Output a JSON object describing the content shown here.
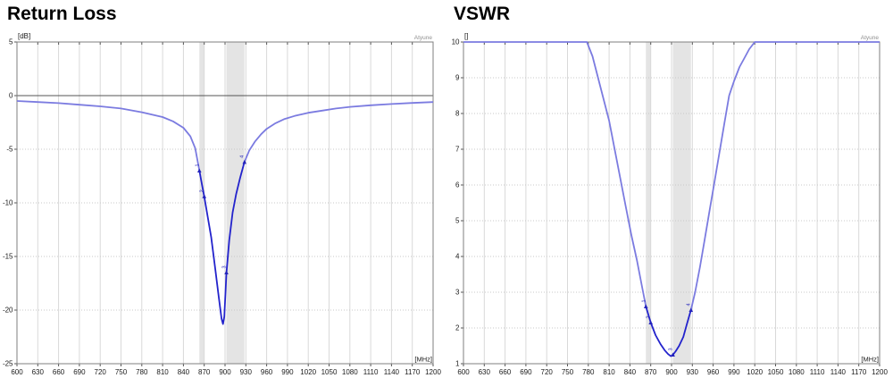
{
  "colors": {
    "curve": "#7b7be0",
    "curve_highlight": "#2323cc",
    "band_fill": "#e4e4e4",
    "grid_vertical": "#d9d9d9",
    "grid_horizontal": "#c9c9c9",
    "frame": "#7f7f7f",
    "zero_line": "#555555",
    "tick": "#555555",
    "tick_text": "#1a1a1a",
    "marker": "#2323bb",
    "watermark": "#909090",
    "title_text": "#000000"
  },
  "chart_data": [
    {
      "type": "line",
      "title": "Return Loss",
      "watermark": "Atyune",
      "y_unit_label": "[dB]",
      "x_unit_label": "[MHz]",
      "x_range": [
        600,
        1200
      ],
      "x_ticks": [
        600,
        630,
        660,
        690,
        720,
        750,
        780,
        810,
        840,
        870,
        900,
        930,
        960,
        990,
        1020,
        1050,
        1080,
        1110,
        1140,
        1170,
        1200
      ],
      "y_range": [
        -25,
        5
      ],
      "y_ticks": [
        5,
        0,
        -5,
        -10,
        -15,
        -20,
        -25
      ],
      "zero_line": 0,
      "bands": [
        [
          863,
          870
        ],
        [
          902,
          928
        ]
      ],
      "highlight_range": [
        863,
        928
      ],
      "markers": [
        {
          "label": "1",
          "x": 863,
          "y": -7.0
        },
        {
          "label": "2",
          "x": 870,
          "y": -9.4
        },
        {
          "label": "3",
          "x": 902,
          "y": -16.5
        },
        {
          "label": "4",
          "x": 928,
          "y": -6.2
        }
      ],
      "points": [
        [
          600,
          -0.5
        ],
        [
          630,
          -0.6
        ],
        [
          660,
          -0.7
        ],
        [
          690,
          -0.85
        ],
        [
          720,
          -1.0
        ],
        [
          750,
          -1.2
        ],
        [
          780,
          -1.55
        ],
        [
          810,
          -2.0
        ],
        [
          825,
          -2.4
        ],
        [
          840,
          -3.0
        ],
        [
          850,
          -3.8
        ],
        [
          857,
          -4.9
        ],
        [
          863,
          -7.0
        ],
        [
          867,
          -8.4
        ],
        [
          870,
          -9.4
        ],
        [
          875,
          -11.3
        ],
        [
          880,
          -13.2
        ],
        [
          886,
          -16.2
        ],
        [
          891,
          -18.8
        ],
        [
          895,
          -20.8
        ],
        [
          897,
          -21.3
        ],
        [
          899,
          -20.6
        ],
        [
          902,
          -16.5
        ],
        [
          906,
          -13.5
        ],
        [
          911,
          -10.9
        ],
        [
          916,
          -9.2
        ],
        [
          922,
          -7.6
        ],
        [
          928,
          -6.2
        ],
        [
          935,
          -5.1
        ],
        [
          943,
          -4.3
        ],
        [
          952,
          -3.6
        ],
        [
          960,
          -3.1
        ],
        [
          972,
          -2.6
        ],
        [
          985,
          -2.2
        ],
        [
          1000,
          -1.9
        ],
        [
          1020,
          -1.6
        ],
        [
          1040,
          -1.4
        ],
        [
          1060,
          -1.2
        ],
        [
          1080,
          -1.05
        ],
        [
          1110,
          -0.9
        ],
        [
          1140,
          -0.78
        ],
        [
          1170,
          -0.68
        ],
        [
          1200,
          -0.6
        ]
      ]
    },
    {
      "type": "line",
      "title": "VSWR",
      "watermark": "Atyune",
      "y_unit_label": "[]",
      "x_unit_label": "[MHz]",
      "x_range": [
        600,
        1200
      ],
      "x_ticks": [
        600,
        630,
        660,
        690,
        720,
        750,
        780,
        810,
        840,
        870,
        900,
        930,
        960,
        990,
        1020,
        1050,
        1080,
        1110,
        1140,
        1170,
        1200
      ],
      "y_range": [
        1,
        10
      ],
      "y_ticks": [
        10,
        9,
        8,
        7,
        6,
        5,
        4,
        3,
        2,
        1
      ],
      "zero_line": null,
      "bands": [
        [
          863,
          870
        ],
        [
          902,
          928
        ]
      ],
      "highlight_range": [
        863,
        928
      ],
      "markers": [
        {
          "label": "1",
          "x": 863,
          "y": 2.6
        },
        {
          "label": "2",
          "x": 870,
          "y": 2.15
        },
        {
          "label": "3",
          "x": 902,
          "y": 1.25
        },
        {
          "label": "4",
          "x": 928,
          "y": 2.5
        }
      ],
      "points": [
        [
          600,
          10
        ],
        [
          700,
          10
        ],
        [
          778,
          10
        ],
        [
          786,
          9.6
        ],
        [
          794,
          9.0
        ],
        [
          802,
          8.4
        ],
        [
          810,
          7.8
        ],
        [
          818,
          7.0
        ],
        [
          826,
          6.2
        ],
        [
          834,
          5.4
        ],
        [
          842,
          4.6
        ],
        [
          850,
          3.9
        ],
        [
          857,
          3.2
        ],
        [
          863,
          2.6
        ],
        [
          870,
          2.15
        ],
        [
          877,
          1.8
        ],
        [
          884,
          1.55
        ],
        [
          890,
          1.38
        ],
        [
          895,
          1.27
        ],
        [
          899,
          1.21
        ],
        [
          902,
          1.25
        ],
        [
          906,
          1.35
        ],
        [
          911,
          1.5
        ],
        [
          917,
          1.75
        ],
        [
          922,
          2.1
        ],
        [
          928,
          2.5
        ],
        [
          934,
          3.0
        ],
        [
          941,
          3.7
        ],
        [
          948,
          4.5
        ],
        [
          955,
          5.3
        ],
        [
          962,
          6.1
        ],
        [
          969,
          6.9
        ],
        [
          976,
          7.7
        ],
        [
          983,
          8.5
        ],
        [
          990,
          8.9
        ],
        [
          998,
          9.3
        ],
        [
          1005,
          9.55
        ],
        [
          1012,
          9.8
        ],
        [
          1020,
          10
        ],
        [
          1100,
          10
        ],
        [
          1200,
          10
        ]
      ]
    }
  ]
}
